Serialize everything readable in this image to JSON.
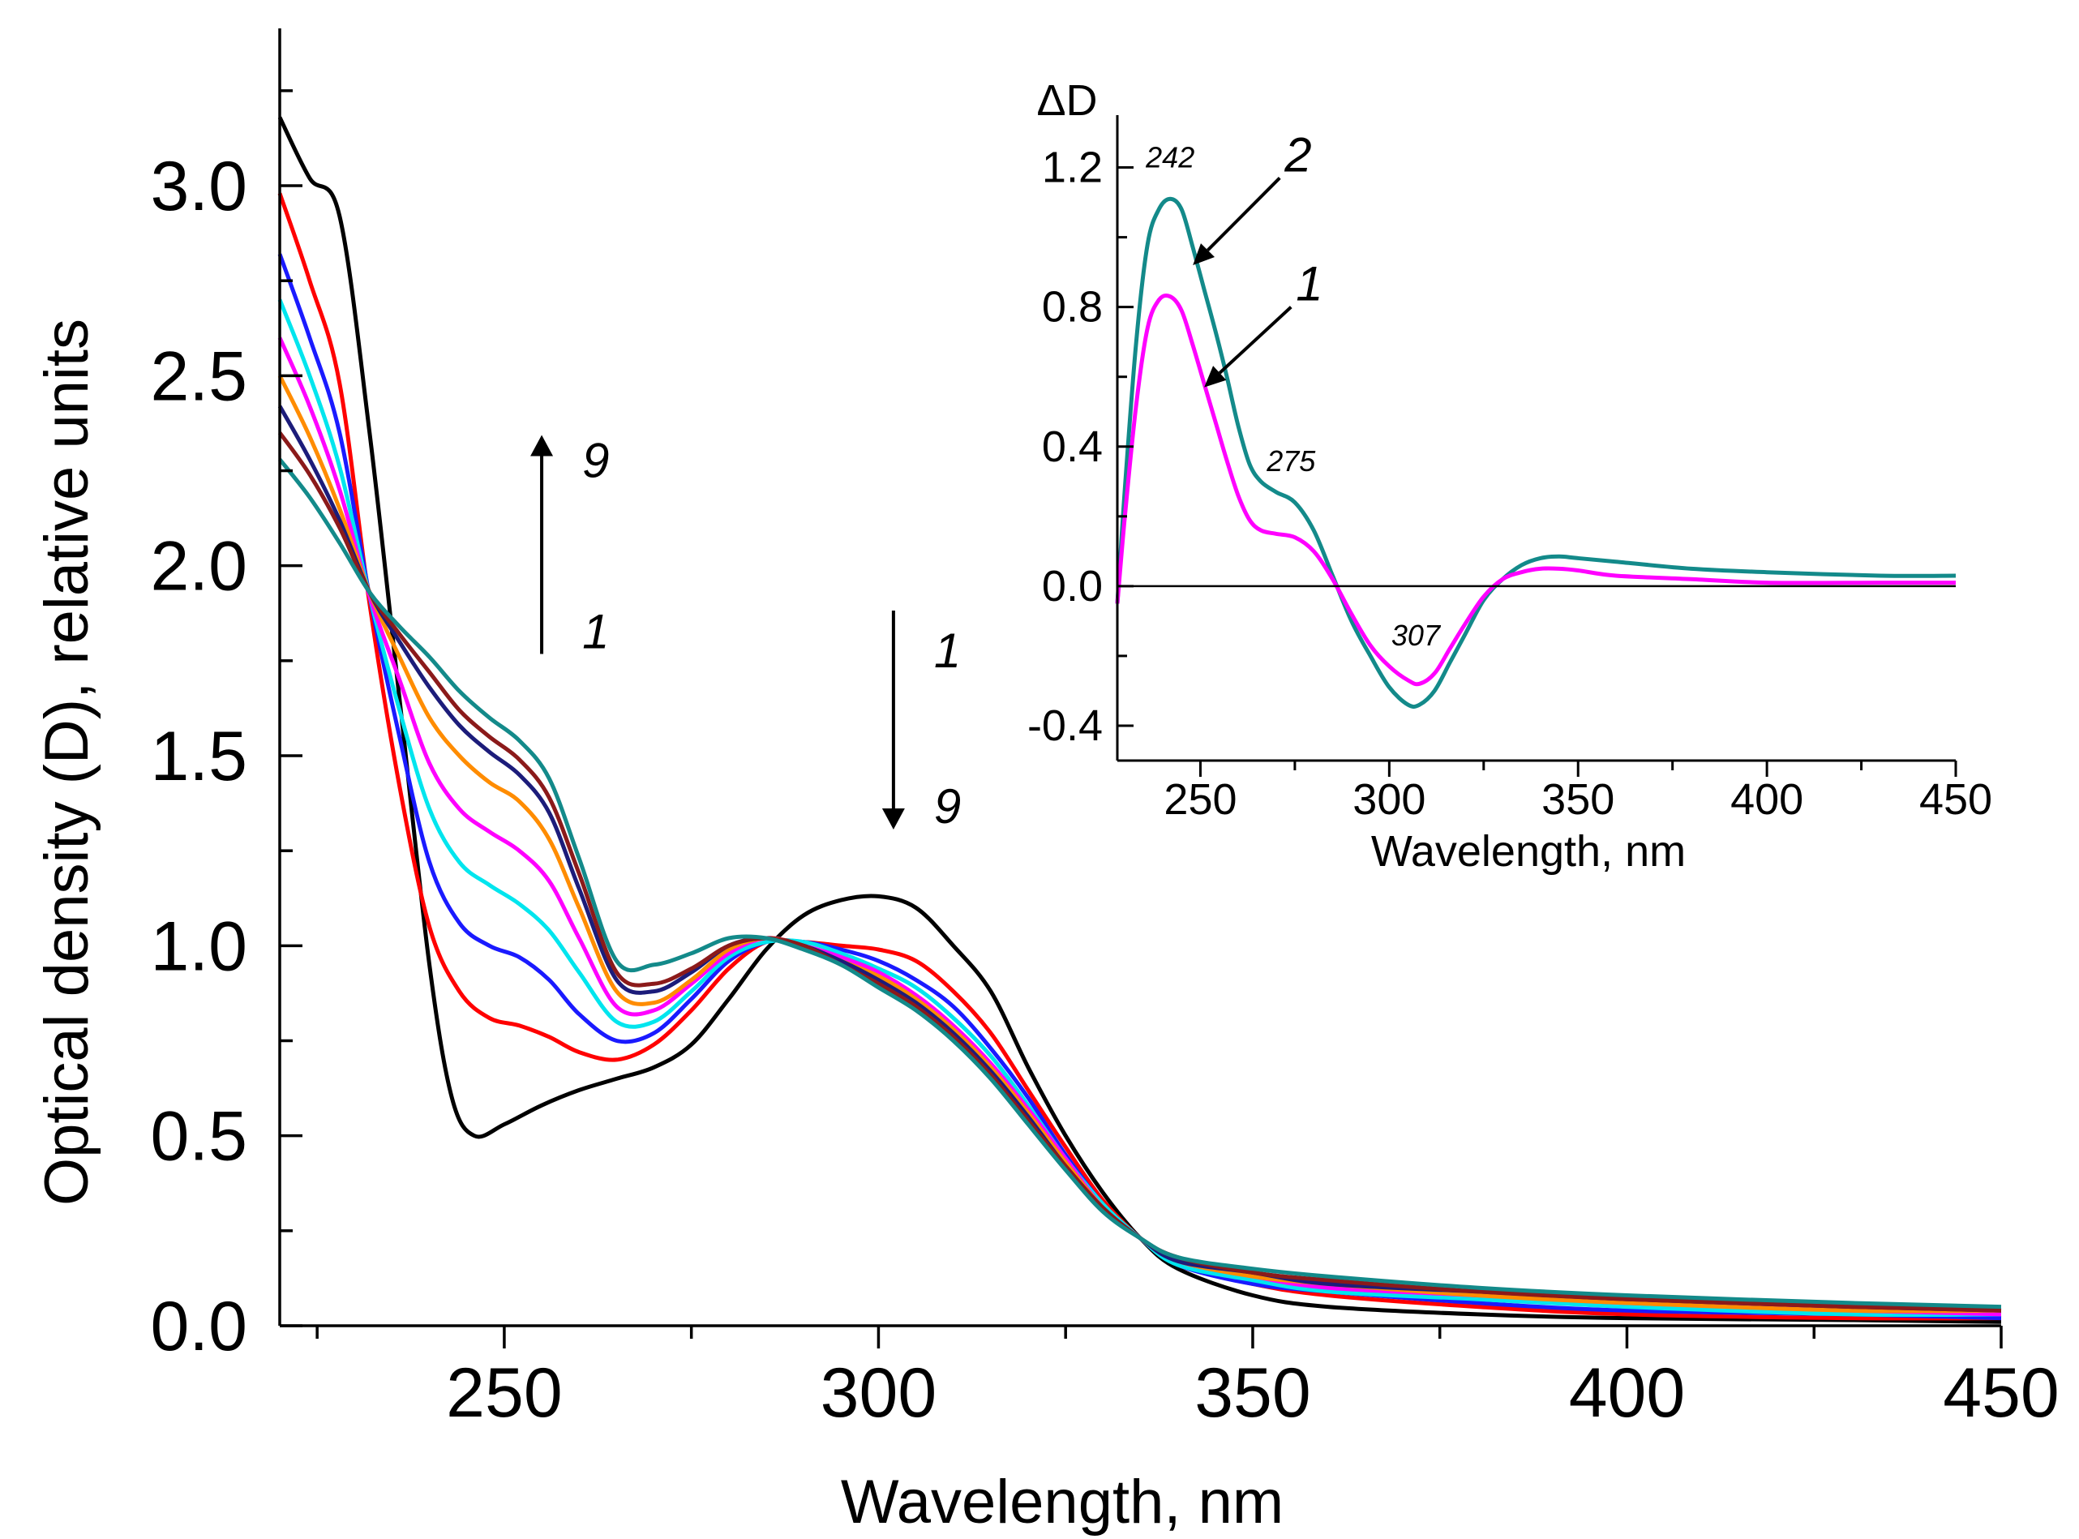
{
  "chart_data": [
    {
      "type": "line",
      "xlabel": "Wavelength, nm",
      "ylabel": "Optical density (D), relative units",
      "xlim": [
        220,
        450
      ],
      "ylim": [
        0,
        3.35
      ],
      "xticks": [
        "250",
        "300",
        "350",
        "400",
        "450"
      ],
      "yticks": [
        "0.0",
        "0.5",
        "1.0",
        "1.5",
        "2.0",
        "2.5",
        "3.0"
      ],
      "grid": false,
      "legend": "none",
      "annotations": [
        {
          "text": "9",
          "x": 255,
          "y": 2.28,
          "arrow": "up"
        },
        {
          "text": "1",
          "x": 255,
          "y": 1.83
        },
        {
          "text": "1",
          "x": 302,
          "y": 1.78
        },
        {
          "text": "9",
          "x": 302,
          "y": 1.37,
          "arrow": "down"
        }
      ],
      "series": [
        {
          "color": "#000000",
          "x": [
            220,
            224,
            228,
            232,
            236,
            240,
            243,
            246,
            250,
            255,
            260,
            265,
            270,
            275,
            280,
            285,
            290,
            295,
            300,
            305,
            310,
            315,
            320,
            325,
            330,
            335,
            340,
            350,
            360,
            380,
            400,
            430,
            450
          ],
          "y": [
            3.18,
            3.02,
            2.92,
            2.35,
            1.65,
            0.95,
            0.6,
            0.5,
            0.53,
            0.58,
            0.62,
            0.65,
            0.68,
            0.74,
            0.86,
            0.99,
            1.08,
            1.12,
            1.13,
            1.1,
            1.0,
            0.88,
            0.68,
            0.5,
            0.35,
            0.23,
            0.15,
            0.08,
            0.05,
            0.03,
            0.02,
            0.015,
            0.01
          ]
        },
        {
          "color": "#ff0000",
          "x": [
            220,
            224,
            228,
            232,
            236,
            240,
            244,
            248,
            252,
            256,
            260,
            265,
            270,
            275,
            280,
            285,
            290,
            295,
            300,
            305,
            310,
            315,
            320,
            325,
            330,
            335,
            340,
            350,
            360,
            380,
            400,
            430,
            450
          ],
          "y": [
            2.98,
            2.75,
            2.48,
            1.9,
            1.42,
            1.05,
            0.88,
            0.81,
            0.79,
            0.76,
            0.72,
            0.7,
            0.74,
            0.83,
            0.94,
            1.01,
            1.01,
            1.0,
            0.99,
            0.96,
            0.88,
            0.77,
            0.62,
            0.47,
            0.33,
            0.23,
            0.16,
            0.11,
            0.08,
            0.05,
            0.03,
            0.02,
            0.02
          ]
        },
        {
          "color": "#1a1aff",
          "x": [
            220,
            224,
            228,
            232,
            236,
            240,
            244,
            248,
            252,
            256,
            260,
            265,
            270,
            275,
            280,
            285,
            290,
            295,
            300,
            305,
            310,
            315,
            320,
            325,
            330,
            335,
            340,
            350,
            360,
            380,
            400,
            430,
            450
          ],
          "y": [
            2.82,
            2.6,
            2.35,
            1.92,
            1.55,
            1.22,
            1.06,
            1.0,
            0.97,
            0.91,
            0.82,
            0.75,
            0.77,
            0.86,
            0.96,
            1.01,
            1.01,
            0.99,
            0.96,
            0.91,
            0.84,
            0.73,
            0.6,
            0.45,
            0.32,
            0.23,
            0.16,
            0.11,
            0.09,
            0.06,
            0.04,
            0.03,
            0.02
          ]
        },
        {
          "color": "#00e5ee",
          "x": [
            220,
            224,
            228,
            232,
            236,
            240,
            244,
            248,
            252,
            256,
            260,
            265,
            270,
            275,
            280,
            285,
            290,
            295,
            300,
            305,
            310,
            315,
            320,
            325,
            330,
            335,
            340,
            350,
            360,
            380,
            400,
            430,
            450
          ],
          "y": [
            2.7,
            2.5,
            2.26,
            1.92,
            1.62,
            1.36,
            1.22,
            1.16,
            1.11,
            1.04,
            0.93,
            0.8,
            0.8,
            0.88,
            0.97,
            1.01,
            1.01,
            0.98,
            0.94,
            0.89,
            0.81,
            0.71,
            0.58,
            0.44,
            0.32,
            0.23,
            0.16,
            0.12,
            0.09,
            0.07,
            0.05,
            0.03,
            0.03
          ]
        },
        {
          "color": "#ff00ff",
          "x": [
            220,
            224,
            228,
            232,
            236,
            240,
            244,
            248,
            252,
            256,
            260,
            265,
            270,
            275,
            280,
            285,
            290,
            295,
            300,
            305,
            310,
            315,
            320,
            325,
            330,
            335,
            340,
            350,
            360,
            380,
            400,
            430,
            450
          ],
          "y": [
            2.6,
            2.42,
            2.2,
            1.92,
            1.7,
            1.48,
            1.36,
            1.3,
            1.25,
            1.17,
            1.02,
            0.84,
            0.83,
            0.9,
            0.98,
            1.02,
            1.0,
            0.97,
            0.93,
            0.87,
            0.79,
            0.69,
            0.57,
            0.44,
            0.31,
            0.23,
            0.17,
            0.13,
            0.1,
            0.08,
            0.06,
            0.04,
            0.03
          ]
        },
        {
          "color": "#ff8c00",
          "x": [
            220,
            224,
            228,
            232,
            236,
            240,
            244,
            248,
            252,
            256,
            260,
            265,
            270,
            275,
            280,
            285,
            290,
            295,
            300,
            305,
            310,
            315,
            320,
            325,
            330,
            335,
            340,
            350,
            360,
            380,
            400,
            430,
            450
          ],
          "y": [
            2.5,
            2.34,
            2.15,
            1.93,
            1.76,
            1.6,
            1.5,
            1.43,
            1.38,
            1.28,
            1.1,
            0.88,
            0.85,
            0.91,
            0.99,
            1.02,
            1.0,
            0.96,
            0.92,
            0.86,
            0.78,
            0.68,
            0.56,
            0.43,
            0.31,
            0.23,
            0.17,
            0.13,
            0.11,
            0.08,
            0.06,
            0.04,
            0.04
          ]
        },
        {
          "color": "#1c1c7a",
          "x": [
            220,
            224,
            228,
            232,
            236,
            240,
            244,
            248,
            252,
            256,
            260,
            265,
            270,
            275,
            280,
            285,
            290,
            295,
            300,
            305,
            310,
            315,
            320,
            325,
            330,
            335,
            340,
            350,
            360,
            380,
            400,
            430,
            450
          ],
          "y": [
            2.42,
            2.28,
            2.12,
            1.93,
            1.8,
            1.68,
            1.58,
            1.51,
            1.45,
            1.35,
            1.15,
            0.91,
            0.88,
            0.93,
            1.0,
            1.02,
            1.0,
            0.96,
            0.91,
            0.85,
            0.77,
            0.67,
            0.55,
            0.42,
            0.31,
            0.23,
            0.17,
            0.14,
            0.11,
            0.09,
            0.07,
            0.05,
            0.04
          ]
        },
        {
          "color": "#8b1a1a",
          "x": [
            220,
            224,
            228,
            232,
            236,
            240,
            244,
            248,
            252,
            256,
            260,
            265,
            270,
            275,
            280,
            285,
            290,
            295,
            300,
            305,
            310,
            315,
            320,
            325,
            330,
            335,
            340,
            350,
            360,
            380,
            400,
            430,
            450
          ],
          "y": [
            2.35,
            2.24,
            2.1,
            1.93,
            1.82,
            1.72,
            1.62,
            1.55,
            1.49,
            1.39,
            1.19,
            0.93,
            0.9,
            0.94,
            1.0,
            1.02,
            1.0,
            0.95,
            0.9,
            0.84,
            0.76,
            0.66,
            0.54,
            0.42,
            0.31,
            0.23,
            0.18,
            0.14,
            0.12,
            0.09,
            0.07,
            0.05,
            0.04
          ]
        },
        {
          "color": "#138a8a",
          "x": [
            220,
            224,
            228,
            232,
            236,
            240,
            244,
            248,
            252,
            256,
            260,
            265,
            270,
            275,
            280,
            285,
            290,
            295,
            300,
            305,
            310,
            315,
            320,
            325,
            330,
            335,
            340,
            350,
            360,
            380,
            400,
            430,
            450
          ],
          "y": [
            2.28,
            2.18,
            2.06,
            1.93,
            1.84,
            1.76,
            1.67,
            1.6,
            1.54,
            1.44,
            1.23,
            0.96,
            0.95,
            0.98,
            1.02,
            1.02,
            0.99,
            0.95,
            0.89,
            0.83,
            0.75,
            0.65,
            0.53,
            0.41,
            0.3,
            0.23,
            0.18,
            0.15,
            0.13,
            0.1,
            0.08,
            0.06,
            0.05
          ]
        }
      ]
    },
    {
      "type": "line",
      "xlabel": "Wavelength, nm",
      "ylabel": "ΔD",
      "xlim": [
        228,
        450
      ],
      "ylim": [
        -0.5,
        1.35
      ],
      "xticks": [
        "250",
        "300",
        "350",
        "400",
        "450"
      ],
      "yticks": [
        "-0.4",
        "0.0",
        "0.4",
        "0.8",
        "1.2"
      ],
      "grid": false,
      "legend": "none",
      "zero_line": true,
      "labels": [
        {
          "text": "2",
          "series": 0,
          "x": 248,
          "y": 0.92,
          "label_x": 271,
          "label_y": 1.17
        },
        {
          "text": "1",
          "series": 1,
          "x": 251,
          "y": 0.57,
          "label_x": 274,
          "label_y": 0.8
        }
      ],
      "peak_labels": [
        {
          "text": "242",
          "x": 242,
          "y": 1.2
        },
        {
          "text": "275",
          "x": 274,
          "y": 0.33
        },
        {
          "text": "307",
          "x": 307,
          "y": -0.17
        }
      ],
      "series": [
        {
          "color": "#138a8a",
          "x": [
            228,
            230,
            233,
            236,
            239,
            242,
            245,
            248,
            251,
            254,
            257,
            260,
            263,
            266,
            270,
            275,
            280,
            285,
            290,
            295,
            300,
            305,
            308,
            312,
            316,
            320,
            325,
            330,
            335,
            340,
            345,
            350,
            360,
            380,
            400,
            430,
            450
          ],
          "y": [
            -0.05,
            0.28,
            0.7,
            0.98,
            1.08,
            1.11,
            1.08,
            0.97,
            0.85,
            0.73,
            0.6,
            0.46,
            0.35,
            0.3,
            0.27,
            0.24,
            0.16,
            0.03,
            -0.1,
            -0.2,
            -0.29,
            -0.34,
            -0.34,
            -0.3,
            -0.22,
            -0.14,
            -0.04,
            0.02,
            0.06,
            0.08,
            0.085,
            0.08,
            0.07,
            0.05,
            0.04,
            0.03,
            0.03
          ]
        },
        {
          "color": "#ff00ff",
          "x": [
            228,
            230,
            233,
            236,
            239,
            242,
            245,
            248,
            251,
            254,
            257,
            260,
            263,
            266,
            270,
            275,
            280,
            285,
            290,
            295,
            300,
            305,
            308,
            312,
            316,
            320,
            325,
            330,
            335,
            340,
            345,
            350,
            360,
            380,
            400,
            430,
            450
          ],
          "y": [
            -0.05,
            0.2,
            0.52,
            0.74,
            0.82,
            0.83,
            0.79,
            0.69,
            0.58,
            0.47,
            0.36,
            0.26,
            0.19,
            0.16,
            0.15,
            0.14,
            0.1,
            0.02,
            -0.08,
            -0.17,
            -0.23,
            -0.27,
            -0.28,
            -0.25,
            -0.18,
            -0.11,
            -0.03,
            0.02,
            0.04,
            0.05,
            0.05,
            0.045,
            0.03,
            0.02,
            0.01,
            0.01,
            0.01
          ]
        }
      ]
    }
  ]
}
